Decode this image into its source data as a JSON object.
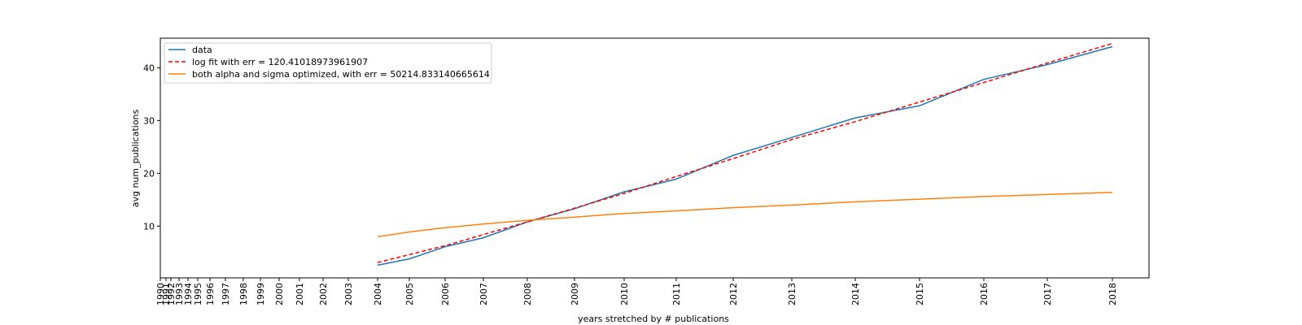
{
  "chart_data": {
    "type": "line",
    "xlabel": "years stretched by # publications",
    "ylabel": "avg num_publications",
    "ylim": [
      0.2,
      45.6
    ],
    "y_ticks": [
      10,
      20,
      30,
      40
    ],
    "x_ticks": [
      "1990",
      "1991",
      "1992",
      "1993",
      "1994",
      "1995",
      "1996",
      "1997",
      "1998",
      "1999",
      "2000",
      "2001",
      "2002",
      "2003",
      "2004",
      "2005",
      "2006",
      "2007",
      "2008",
      "2009",
      "2010",
      "2011",
      "2012",
      "2013",
      "2014",
      "2015",
      "2016",
      "2017",
      "2018"
    ],
    "grid": false,
    "legend_position": "top-left",
    "series": [
      {
        "name": "data",
        "color": "#1f77b4",
        "style": "solid",
        "x": [
          "2004",
          "2005",
          "2006",
          "2007",
          "2008",
          "2009",
          "2010",
          "2011",
          "2012",
          "2013",
          "2014",
          "2015",
          "2016",
          "2017",
          "2018"
        ],
        "values": [
          2.6,
          3.8,
          6.1,
          7.8,
          10.8,
          13.3,
          16.5,
          18.9,
          23.4,
          26.8,
          30.5,
          32.8,
          37.8,
          40.6,
          44.0
        ]
      },
      {
        "name": "log fit with err = 120.41018973961907",
        "color": "#ff0000",
        "style": "dashed",
        "x": [
          "2004",
          "2005",
          "2006",
          "2007",
          "2008",
          "2009",
          "2010",
          "2011",
          "2012",
          "2013",
          "2014",
          "2015",
          "2016",
          "2017",
          "2018"
        ],
        "values": [
          3.1,
          4.6,
          6.3,
          8.4,
          10.8,
          13.4,
          16.2,
          19.4,
          22.8,
          26.4,
          29.8,
          33.5,
          37.2,
          40.9,
          44.6
        ]
      },
      {
        "name": "both alpha and sigma optimized, with err = 50214.833140665614",
        "color": "#ff7f0e",
        "style": "solid",
        "x": [
          "2004",
          "2005",
          "2006",
          "2007",
          "2008",
          "2009",
          "2010",
          "2011",
          "2012",
          "2013",
          "2014",
          "2015",
          "2016",
          "2017",
          "2018"
        ],
        "values": [
          8.0,
          8.9,
          9.7,
          10.4,
          11.1,
          11.7,
          12.4,
          12.9,
          13.5,
          14.0,
          14.6,
          15.1,
          15.6,
          16.0,
          16.4
        ]
      }
    ]
  }
}
